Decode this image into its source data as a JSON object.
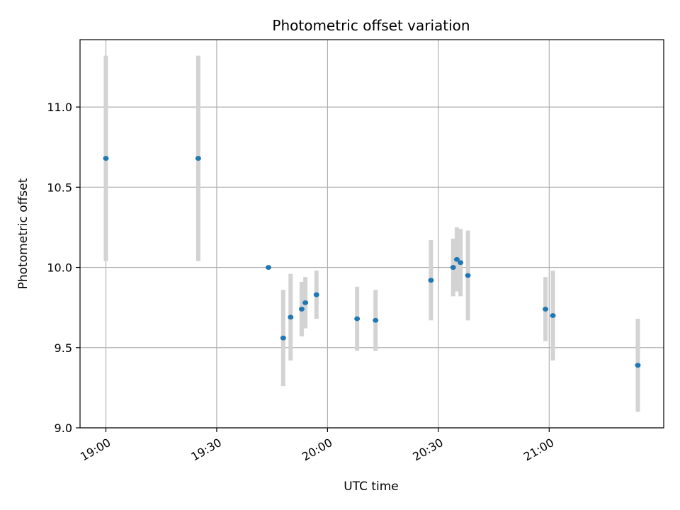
{
  "chart_data": {
    "type": "scatter",
    "title": "Photometric offset variation",
    "xlabel": "UTC time",
    "ylabel": "Photometric offset",
    "x_unit": "HH:MM UTC",
    "xlim": [
      "18:53",
      "21:31"
    ],
    "ylim": [
      9.0,
      11.42
    ],
    "x_ticks": [
      "19:00",
      "19:30",
      "20:00",
      "20:30",
      "21:00"
    ],
    "y_ticks": [
      "9.0",
      "9.5",
      "10.0",
      "10.5",
      "11.0"
    ],
    "grid": true,
    "marker_color": "#1f77b4",
    "errorbar_color": "#d3d3d3",
    "points": [
      {
        "time": "19:00",
        "y": 10.68,
        "err": 0.64
      },
      {
        "time": "19:25",
        "y": 10.68,
        "err": 0.64
      },
      {
        "time": "19:44",
        "y": 10.0,
        "err": 0.0
      },
      {
        "time": "19:48",
        "y": 9.56,
        "err": 0.3
      },
      {
        "time": "19:50",
        "y": 9.69,
        "err": 0.27
      },
      {
        "time": "19:53",
        "y": 9.74,
        "err": 0.17
      },
      {
        "time": "19:54",
        "y": 9.78,
        "err": 0.16
      },
      {
        "time": "19:57",
        "y": 9.83,
        "err": 0.15
      },
      {
        "time": "20:08",
        "y": 9.68,
        "err": 0.2
      },
      {
        "time": "20:13",
        "y": 9.67,
        "err": 0.19
      },
      {
        "time": "20:28",
        "y": 9.92,
        "err": 0.25
      },
      {
        "time": "20:34",
        "y": 10.0,
        "err": 0.18
      },
      {
        "time": "20:35",
        "y": 10.05,
        "err": 0.2
      },
      {
        "time": "20:36",
        "y": 10.03,
        "err": 0.21
      },
      {
        "time": "20:38",
        "y": 9.95,
        "err": 0.28
      },
      {
        "time": "20:59",
        "y": 9.74,
        "err": 0.2
      },
      {
        "time": "21:01",
        "y": 9.7,
        "err": 0.28
      },
      {
        "time": "21:24",
        "y": 9.39,
        "err": 0.29
      }
    ]
  }
}
